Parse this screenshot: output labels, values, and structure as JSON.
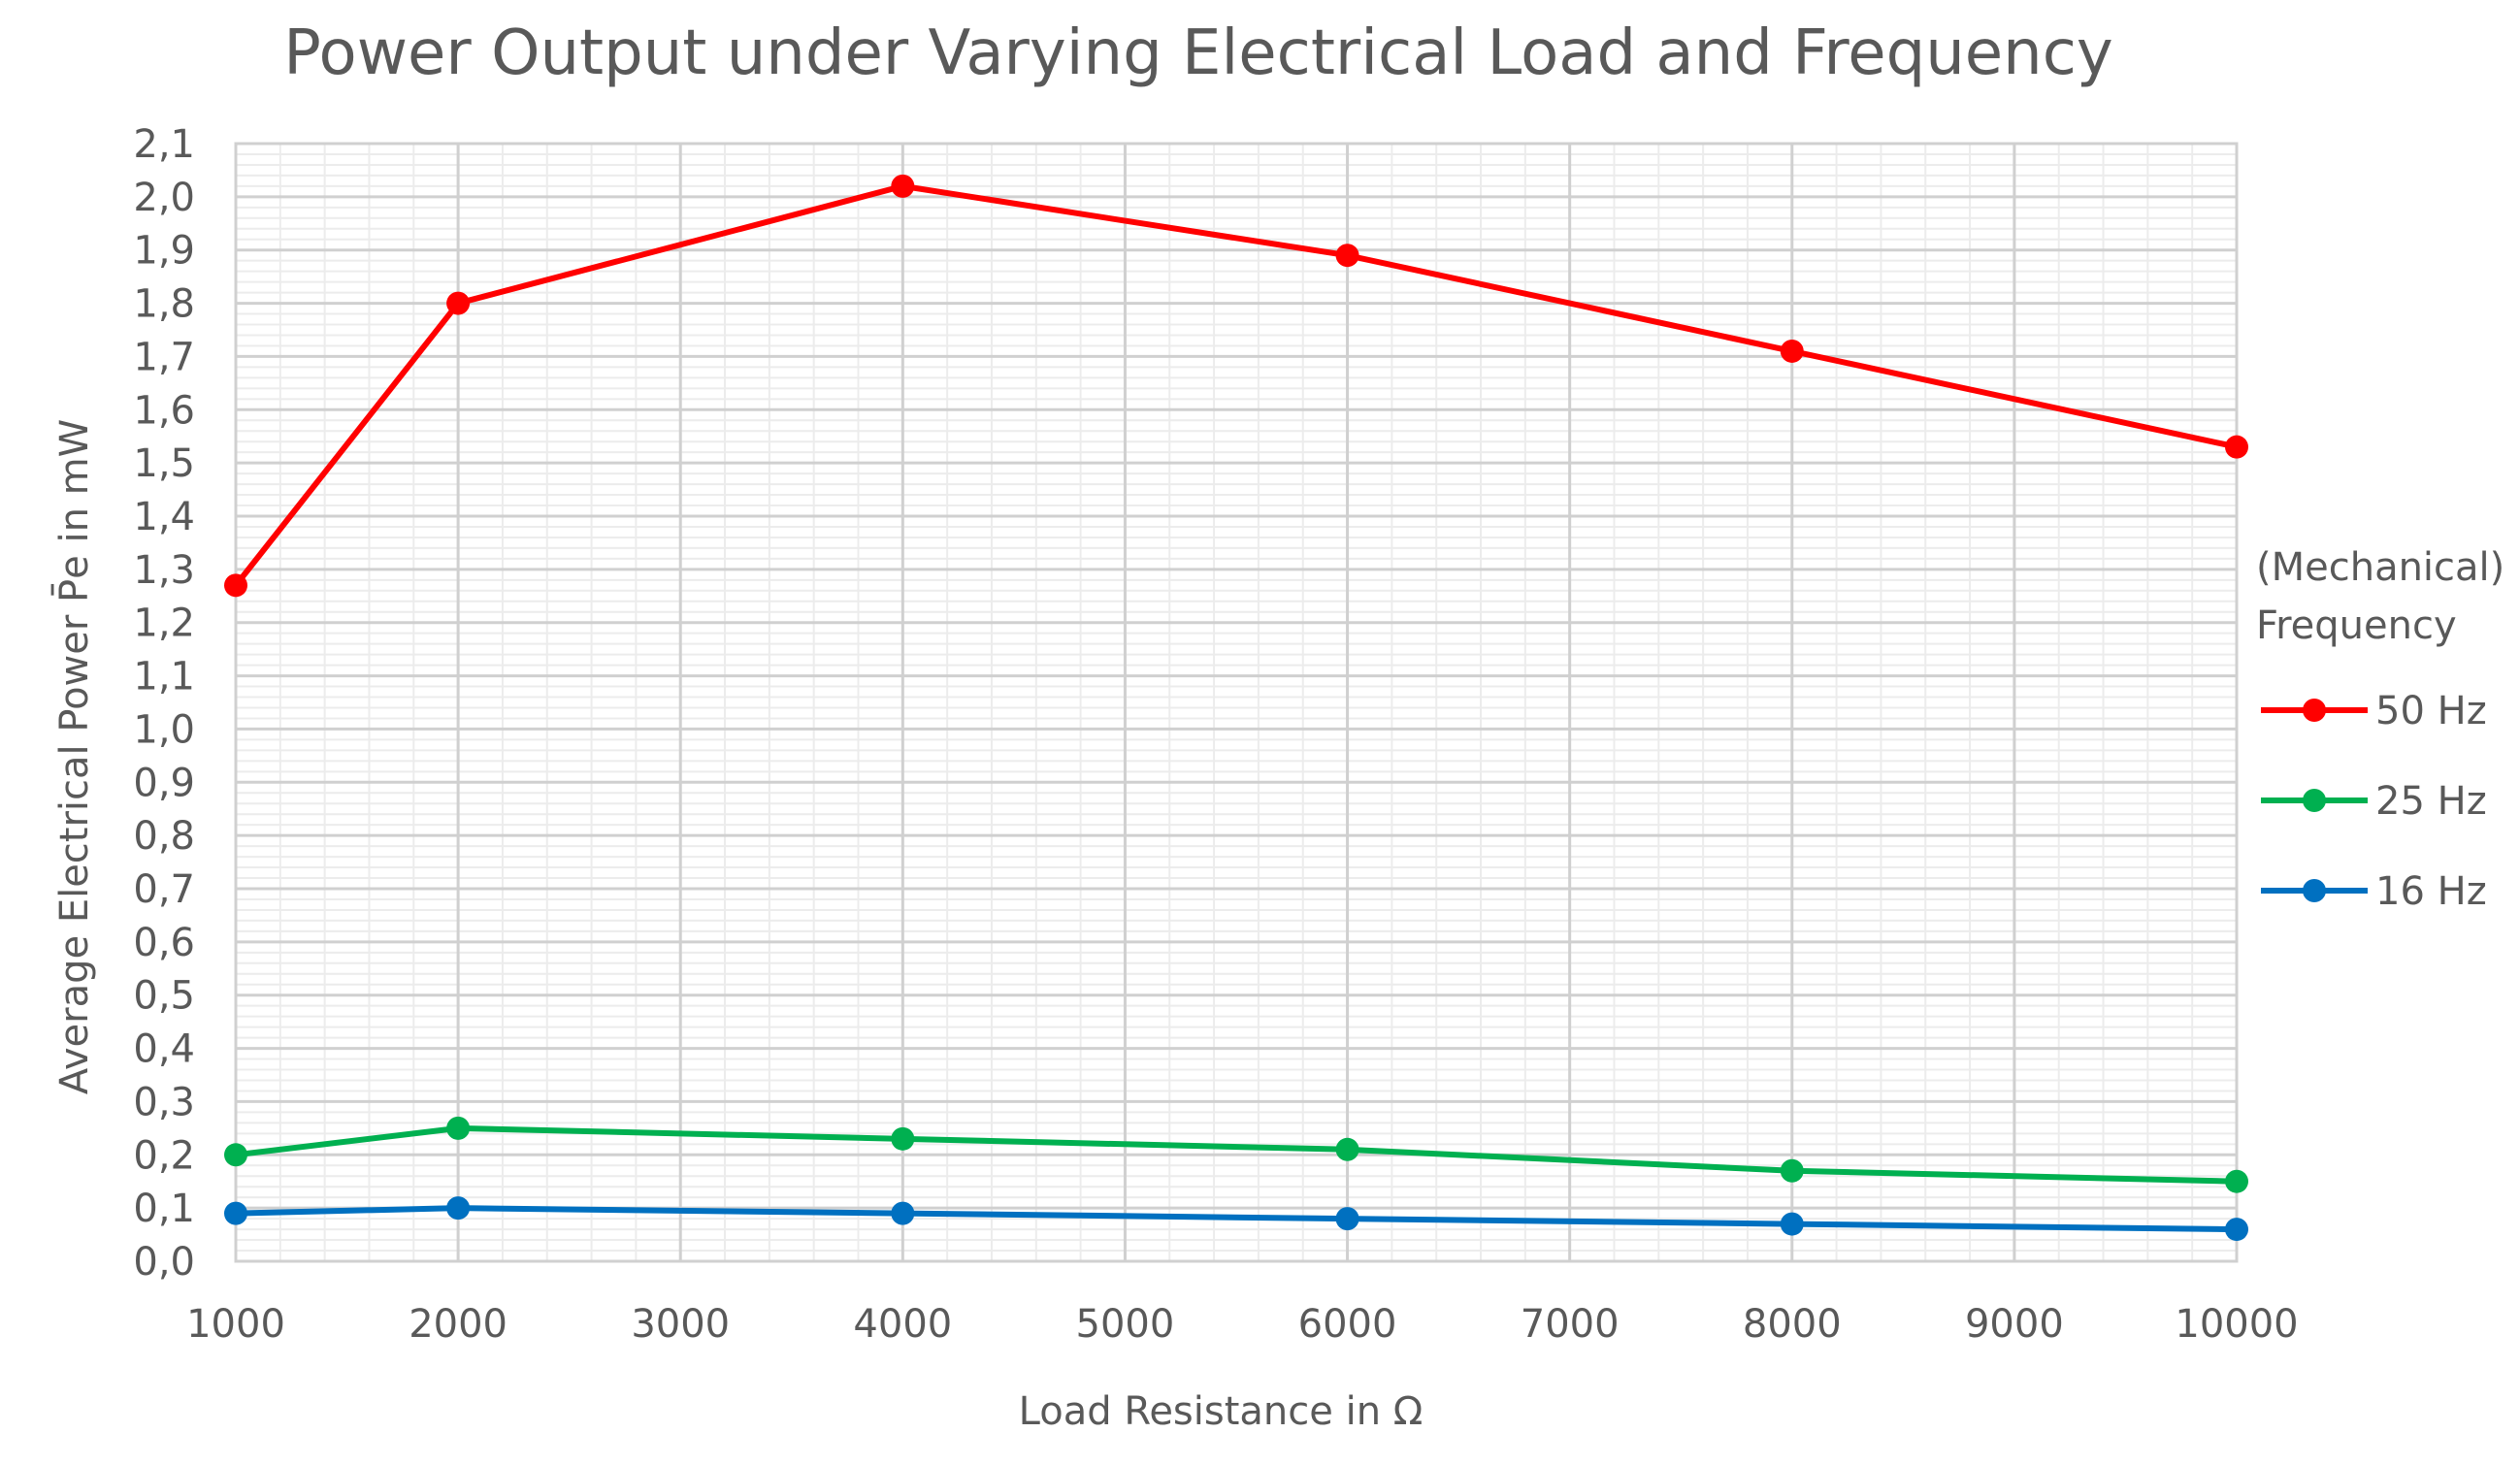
{
  "chart_data": {
    "type": "line",
    "title": "Power Output under Varying Electrical Load and Frequency",
    "xlabel": "Load Resistance in Ω",
    "ylabel": "Average Electrical Power  P̄e in mW",
    "x": [
      1000,
      2000,
      4000,
      6000,
      8000,
      10000
    ],
    "xlim": [
      1000,
      10000
    ],
    "ylim": [
      0.0,
      2.1
    ],
    "x_ticks": [
      "1000",
      "2000",
      "3000",
      "4000",
      "5000",
      "6000",
      "7000",
      "8000",
      "9000",
      "10000"
    ],
    "y_ticks": [
      "0,0",
      "0,1",
      "0,2",
      "0,3",
      "0,4",
      "0,5",
      "0,6",
      "0,7",
      "0,8",
      "0,9",
      "1,0",
      "1,1",
      "1,2",
      "1,3",
      "1,4",
      "1,5",
      "1,6",
      "1,7",
      "1,8",
      "1,9",
      "2,0",
      "2,1"
    ],
    "grid": true,
    "legend_title": [
      "(Mechanical)",
      "Frequency"
    ],
    "legend_position": "right",
    "series": [
      {
        "name": "50 Hz",
        "color": "#ff0000",
        "values": [
          1.27,
          1.8,
          2.02,
          1.89,
          1.71,
          1.53
        ]
      },
      {
        "name": "25 Hz",
        "color": "#00b050",
        "values": [
          0.2,
          0.25,
          0.23,
          0.21,
          0.17,
          0.15
        ]
      },
      {
        "name": "16 Hz",
        "color": "#0070c0",
        "values": [
          0.09,
          0.1,
          0.09,
          0.08,
          0.07,
          0.06
        ]
      }
    ]
  }
}
